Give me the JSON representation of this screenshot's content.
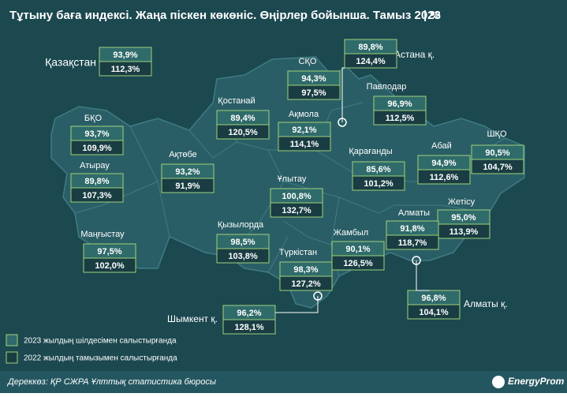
{
  "header": {
    "title": "Тұтыну баға индексі. Жаңа піскен көкөніс. Өңірлер бойынша. Тамыз 2023",
    "unit": "| %"
  },
  "regions": [
    {
      "name": "Қазақстан",
      "vs_july_2023": "93,9%",
      "vs_aug_2022": "112,3%"
    },
    {
      "name": "СҚО",
      "vs_july_2023": "94,3%",
      "vs_aug_2022": "97,5%"
    },
    {
      "name": "Астана қ.",
      "vs_july_2023": "89,8%",
      "vs_aug_2022": "124,4%"
    },
    {
      "name": "Павлодар",
      "vs_july_2023": "96,9%",
      "vs_aug_2022": "112,5%"
    },
    {
      "name": "Қостанай",
      "vs_july_2023": "89,4%",
      "vs_aug_2022": "120,5%"
    },
    {
      "name": "Ақмола",
      "vs_july_2023": "92,1%",
      "vs_aug_2022": "114,1%"
    },
    {
      "name": "БҚО",
      "vs_july_2023": "93,7%",
      "vs_aug_2022": "109,9%"
    },
    {
      "name": "Атырау",
      "vs_july_2023": "89,8%",
      "vs_aug_2022": "107,3%"
    },
    {
      "name": "Ақтөбе",
      "vs_july_2023": "93,2%",
      "vs_aug_2022": "91,9%"
    },
    {
      "name": "Қарағанды",
      "vs_july_2023": "85,6%",
      "vs_aug_2022": "101,2%"
    },
    {
      "name": "Абай",
      "vs_july_2023": "94,9%",
      "vs_aug_2022": "112,6%"
    },
    {
      "name": "ШҚО",
      "vs_july_2023": "90,5%",
      "vs_aug_2022": "104,7%"
    },
    {
      "name": "Ұлытау",
      "vs_july_2023": "100,8%",
      "vs_aug_2022": "132,7%"
    },
    {
      "name": "Жетісу",
      "vs_july_2023": "95,0%",
      "vs_aug_2022": "113,9%"
    },
    {
      "name": "Алматы",
      "vs_july_2023": "91,8%",
      "vs_aug_2022": "118,7%"
    },
    {
      "name": "Маңғыстау",
      "vs_july_2023": "97,5%",
      "vs_aug_2022": "102,0%"
    },
    {
      "name": "Қызылорда",
      "vs_july_2023": "98,5%",
      "vs_aug_2022": "103,8%"
    },
    {
      "name": "Жамбыл",
      "vs_july_2023": "90,1%",
      "vs_aug_2022": "126,5%"
    },
    {
      "name": "Түркістан",
      "vs_july_2023": "98,3%",
      "vs_aug_2022": "127,2%"
    },
    {
      "name": "Алматы қ.",
      "vs_july_2023": "96,8%",
      "vs_aug_2022": "104,1%"
    },
    {
      "name": "Шымкент қ.",
      "vs_july_2023": "96,2%",
      "vs_aug_2022": "128,1%"
    }
  ],
  "legend": [
    "2023 жылдың шілдесімен салыстырғанда",
    "2022 жылдың тамызымен салыстырғанда"
  ],
  "footer": {
    "source": "Дереккөз: ҚР СЖРА Ұлттық статистика бюросы",
    "logo": "EnergyProm"
  }
}
